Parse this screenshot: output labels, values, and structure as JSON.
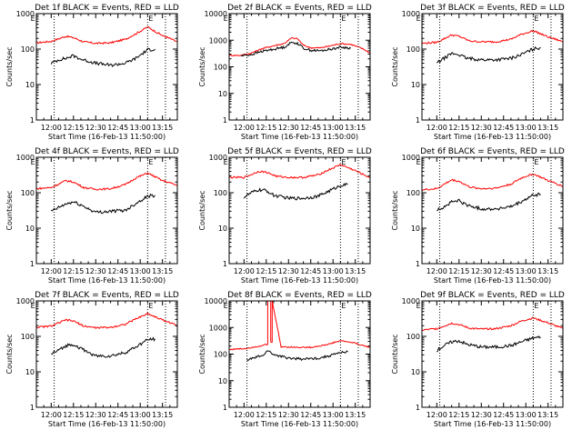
{
  "chart_data": [
    {
      "type": "line",
      "title": "Det 1f BLACK = Events, RED = LLD",
      "xlabel": "Start Time (16-Feb-13 11:50:00)",
      "ylabel": "Counts/sec",
      "x_ticks": [
        "12:00",
        "12:15",
        "12:30",
        "12:45",
        "13:00",
        "13:15"
      ],
      "y_ticks": [
        "1",
        "10",
        "100",
        "1000"
      ],
      "yscale": "log",
      "ylim": [
        1,
        1000
      ],
      "xlim": [
        "11:50",
        "13:25"
      ],
      "vlines": [
        "12:02",
        "13:05",
        "13:17"
      ],
      "marker_labels": [
        "E",
        "E"
      ],
      "series": [
        {
          "color": "#ff0000",
          "x": [
            "11:50",
            "12:00",
            "12:10",
            "12:15",
            "12:22",
            "12:30",
            "12:40",
            "12:50",
            "12:57",
            "13:05",
            "13:15",
            "13:20",
            "13:25"
          ],
          "values": [
            150,
            165,
            230,
            210,
            160,
            145,
            150,
            190,
            270,
            420,
            240,
            200,
            160
          ]
        },
        {
          "color": "#000000",
          "x": [
            "12:00",
            "12:05",
            "12:10",
            "12:15",
            "12:20",
            "12:30",
            "12:40",
            "12:50",
            "12:57",
            "13:05",
            "13:10"
          ],
          "values": [
            40,
            50,
            55,
            65,
            52,
            40,
            35,
            40,
            55,
            95,
            100
          ]
        }
      ]
    },
    {
      "type": "line",
      "title": "Det 2f BLACK = Events, RED = LLD",
      "xlabel": "Start Time (16-Feb-13 11:50:00)",
      "ylabel": "Counts/sec",
      "x_ticks": [
        "12:00",
        "12:15",
        "12:30",
        "12:45",
        "13:00",
        "13:15"
      ],
      "y_ticks": [
        "1",
        "10",
        "100",
        "1000",
        "10000"
      ],
      "yscale": "log",
      "ylim": [
        1,
        10000
      ],
      "xlim": [
        "11:50",
        "13:25"
      ],
      "vlines": [
        "12:02",
        "13:05",
        "13:17"
      ],
      "marker_labels": [
        "E",
        "E"
      ],
      "series": [
        {
          "color": "#ff0000",
          "x": [
            "11:50",
            "11:58",
            "12:05",
            "12:12",
            "12:20",
            "12:27",
            "12:32",
            "12:36",
            "12:40",
            "12:45",
            "12:52",
            "13:00",
            "13:05",
            "13:12",
            "13:20",
            "13:25"
          ],
          "values": [
            270,
            270,
            330,
            480,
            620,
            750,
            1200,
            1150,
            650,
            520,
            520,
            650,
            750,
            700,
            480,
            330
          ]
        },
        {
          "color": "#000000",
          "x": [
            "11:58",
            "12:05",
            "12:12",
            "12:20",
            "12:27",
            "12:32",
            "12:36",
            "12:40",
            "12:45",
            "12:52",
            "13:00",
            "13:05",
            "13:12"
          ],
          "values": [
            260,
            290,
            380,
            460,
            550,
            820,
            780,
            500,
            420,
            400,
            480,
            550,
            500
          ]
        }
      ]
    },
    {
      "type": "line",
      "title": "Det 3f BLACK = Events, RED = LLD",
      "xlabel": "Start Time (16-Feb-13 11:50:00)",
      "ylabel": "Counts/sec",
      "x_ticks": [
        "12:00",
        "12:15",
        "12:30",
        "12:45",
        "13:00",
        "13:15"
      ],
      "y_ticks": [
        "1",
        "10",
        "100",
        "1000"
      ],
      "yscale": "log",
      "ylim": [
        1,
        1000
      ],
      "xlim": [
        "11:50",
        "13:25"
      ],
      "vlines": [
        "12:02",
        "13:05",
        "13:17"
      ],
      "marker_labels": [
        "E",
        "E"
      ],
      "series": [
        {
          "color": "#ff0000",
          "x": [
            "11:50",
            "12:00",
            "12:10",
            "12:15",
            "12:22",
            "12:30",
            "12:40",
            "12:50",
            "12:57",
            "13:05",
            "13:15",
            "13:20",
            "13:25"
          ],
          "values": [
            145,
            155,
            250,
            230,
            170,
            160,
            160,
            190,
            260,
            330,
            220,
            190,
            160
          ]
        },
        {
          "color": "#000000",
          "x": [
            "12:00",
            "12:05",
            "12:10",
            "12:15",
            "12:20",
            "12:30",
            "12:40",
            "12:50",
            "12:57",
            "13:05",
            "13:10"
          ],
          "values": [
            40,
            55,
            75,
            70,
            55,
            50,
            50,
            55,
            70,
            100,
            110
          ]
        }
      ]
    },
    {
      "type": "line",
      "title": "Det 4f BLACK = Events, RED = LLD",
      "xlabel": "Start Time (16-Feb-13 11:50:00)",
      "ylabel": "Counts/sec",
      "x_ticks": [
        "12:00",
        "12:15",
        "12:30",
        "12:45",
        "13:00",
        "13:15"
      ],
      "y_ticks": [
        "1",
        "10",
        "100",
        "1000"
      ],
      "yscale": "log",
      "ylim": [
        1,
        1000
      ],
      "xlim": [
        "11:50",
        "13:25"
      ],
      "vlines": [
        "12:02",
        "13:05",
        "13:17"
      ],
      "marker_labels": [
        "E",
        "E"
      ],
      "series": [
        {
          "color": "#ff0000",
          "x": [
            "11:50",
            "12:00",
            "12:10",
            "12:15",
            "12:22",
            "12:30",
            "12:40",
            "12:50",
            "12:57",
            "13:05",
            "13:15",
            "13:20",
            "13:25"
          ],
          "values": [
            130,
            140,
            220,
            200,
            140,
            125,
            130,
            170,
            260,
            360,
            220,
            190,
            160
          ]
        },
        {
          "color": "#000000",
          "x": [
            "12:00",
            "12:05",
            "12:10",
            "12:15",
            "12:20",
            "12:30",
            "12:40",
            "12:50",
            "12:57",
            "13:05",
            "13:10"
          ],
          "values": [
            30,
            38,
            48,
            55,
            45,
            28,
            30,
            32,
            50,
            80,
            85
          ]
        }
      ]
    },
    {
      "type": "line",
      "title": "Det 5f BLACK = Events, RED = LLD",
      "xlabel": "Start Time (16-Feb-13 11:50:00)",
      "ylabel": "Counts/sec",
      "x_ticks": [
        "12:00",
        "12:15",
        "12:30",
        "12:45",
        "13:00",
        "13:15"
      ],
      "y_ticks": [
        "1",
        "10",
        "100",
        "1000"
      ],
      "yscale": "log",
      "ylim": [
        1,
        1000
      ],
      "xlim": [
        "11:50",
        "13:25"
      ],
      "vlines": [
        "12:02",
        "13:05",
        "13:17"
      ],
      "marker_labels": [
        "E",
        "E"
      ],
      "series": [
        {
          "color": "#ff0000",
          "x": [
            "11:50",
            "12:00",
            "12:10",
            "12:15",
            "12:22",
            "12:30",
            "12:40",
            "12:50",
            "12:57",
            "13:05",
            "13:15",
            "13:20",
            "13:25"
          ],
          "values": [
            270,
            270,
            400,
            380,
            290,
            270,
            270,
            320,
            440,
            620,
            420,
            330,
            270
          ]
        },
        {
          "color": "#000000",
          "x": [
            "12:00",
            "12:05",
            "12:10",
            "12:15",
            "12:20",
            "12:30",
            "12:40",
            "12:50",
            "12:57",
            "13:05",
            "13:10"
          ],
          "values": [
            75,
            100,
            120,
            115,
            85,
            70,
            70,
            80,
            110,
            160,
            170
          ]
        }
      ]
    },
    {
      "type": "line",
      "title": "Det 6f BLACK = Events, RED = LLD",
      "xlabel": "Start Time (16-Feb-13 11:50:00)",
      "ylabel": "Counts/sec",
      "x_ticks": [
        "12:00",
        "12:15",
        "12:30",
        "12:45",
        "13:00",
        "13:15"
      ],
      "y_ticks": [
        "1",
        "10",
        "100",
        "1000"
      ],
      "yscale": "log",
      "ylim": [
        1,
        1000
      ],
      "xlim": [
        "11:50",
        "13:25"
      ],
      "vlines": [
        "12:02",
        "13:05",
        "13:17"
      ],
      "marker_labels": [
        "E",
        "E"
      ],
      "series": [
        {
          "color": "#ff0000",
          "x": [
            "11:50",
            "12:00",
            "12:10",
            "12:15",
            "12:22",
            "12:30",
            "12:40",
            "12:50",
            "12:57",
            "13:05",
            "13:15",
            "13:20",
            "13:25"
          ],
          "values": [
            120,
            130,
            230,
            210,
            145,
            130,
            135,
            175,
            260,
            340,
            220,
            185,
            150
          ]
        },
        {
          "color": "#000000",
          "x": [
            "12:00",
            "12:05",
            "12:10",
            "12:15",
            "12:20",
            "12:30",
            "12:40",
            "12:50",
            "12:57",
            "13:05",
            "13:10"
          ],
          "values": [
            32,
            40,
            55,
            60,
            45,
            35,
            35,
            40,
            55,
            85,
            90
          ]
        }
      ]
    },
    {
      "type": "line",
      "title": "Det 7f BLACK = Events, RED = LLD",
      "xlabel": "Start Time (16-Feb-13 11:50:00)",
      "ylabel": "Counts/sec",
      "x_ticks": [
        "12:00",
        "12:15",
        "12:30",
        "12:45",
        "13:00",
        "13:15"
      ],
      "y_ticks": [
        "1",
        "10",
        "100",
        "1000"
      ],
      "yscale": "log",
      "ylim": [
        1,
        1000
      ],
      "xlim": [
        "11:50",
        "13:25"
      ],
      "vlines": [
        "12:02",
        "13:05",
        "13:17"
      ],
      "marker_labels": [
        "E",
        "E"
      ],
      "series": [
        {
          "color": "#ff0000",
          "x": [
            "11:50",
            "12:00",
            "12:10",
            "12:15",
            "12:22",
            "12:30",
            "12:40",
            "12:50",
            "12:57",
            "13:05",
            "13:15",
            "13:20",
            "13:25"
          ],
          "values": [
            180,
            195,
            290,
            270,
            195,
            175,
            180,
            220,
            310,
            440,
            290,
            245,
            200
          ]
        },
        {
          "color": "#000000",
          "x": [
            "12:00",
            "12:05",
            "12:10",
            "12:15",
            "12:20",
            "12:30",
            "12:40",
            "12:50",
            "12:57",
            "13:05",
            "13:10"
          ],
          "values": [
            32,
            40,
            55,
            60,
            45,
            28,
            28,
            35,
            50,
            80,
            85
          ]
        }
      ]
    },
    {
      "type": "line",
      "title": "Det 8f BLACK = Events, RED = LLD",
      "xlabel": "Start Time (16-Feb-13 11:50:00)",
      "ylabel": "Counts/sec",
      "x_ticks": [
        "12:00",
        "12:15",
        "12:30",
        "12:45",
        "13:00",
        "13:15"
      ],
      "y_ticks": [
        "1",
        "10",
        "100",
        "1000",
        "10000"
      ],
      "yscale": "log",
      "ylim": [
        1,
        10000
      ],
      "xlim": [
        "11:50",
        "13:25"
      ],
      "vlines": [
        "12:02",
        "13:05",
        "13:17"
      ],
      "marker_labels": [
        "E",
        "E"
      ],
      "series": [
        {
          "color": "#ff0000",
          "x": [
            "11:50",
            "12:00",
            "12:10",
            "12:16",
            "12:16",
            "12:18",
            "12:18",
            "12:19",
            "12:19",
            "12:25",
            "12:35",
            "12:45",
            "12:55",
            "13:05",
            "13:15",
            "13:20",
            "13:25"
          ],
          "values": [
            150,
            160,
            200,
            230,
            10000,
            10000,
            280,
            280,
            10000,
            190,
            180,
            180,
            220,
            320,
            260,
            210,
            180
          ]
        },
        {
          "color": "#000000",
          "x": [
            "12:02",
            "12:08",
            "12:14",
            "12:16",
            "12:18",
            "12:19",
            "12:22",
            "12:30",
            "12:40",
            "12:50",
            "12:57",
            "13:05",
            "13:10"
          ],
          "values": [
            60,
            75,
            95,
            140,
            120,
            100,
            90,
            70,
            65,
            70,
            85,
            115,
            120
          ]
        }
      ]
    },
    {
      "type": "line",
      "title": "Det 9f BLACK = Events, RED = LLD",
      "xlabel": "Start Time (16-Feb-13 11:50:00)",
      "ylabel": "Counts/sec",
      "x_ticks": [
        "12:00",
        "12:15",
        "12:30",
        "12:45",
        "13:00",
        "13:15"
      ],
      "y_ticks": [
        "1",
        "10",
        "100",
        "1000"
      ],
      "yscale": "log",
      "ylim": [
        1,
        1000
      ],
      "xlim": [
        "11:50",
        "13:25"
      ],
      "vlines": [
        "12:02",
        "13:05",
        "13:17"
      ],
      "marker_labels": [
        "E",
        "E"
      ],
      "series": [
        {
          "color": "#ff0000",
          "x": [
            "11:50",
            "12:00",
            "12:10",
            "12:15",
            "12:22",
            "12:30",
            "12:40",
            "12:50",
            "12:57",
            "13:05",
            "13:15",
            "13:20",
            "13:25"
          ],
          "values": [
            150,
            165,
            235,
            215,
            170,
            160,
            165,
            200,
            270,
            330,
            240,
            200,
            165
          ]
        },
        {
          "color": "#000000",
          "x": [
            "12:00",
            "12:05",
            "12:10",
            "12:15",
            "12:20",
            "12:30",
            "12:40",
            "12:50",
            "12:57",
            "13:05",
            "13:10"
          ],
          "values": [
            40,
            55,
            70,
            75,
            60,
            50,
            50,
            55,
            70,
            90,
            95
          ]
        }
      ]
    }
  ]
}
